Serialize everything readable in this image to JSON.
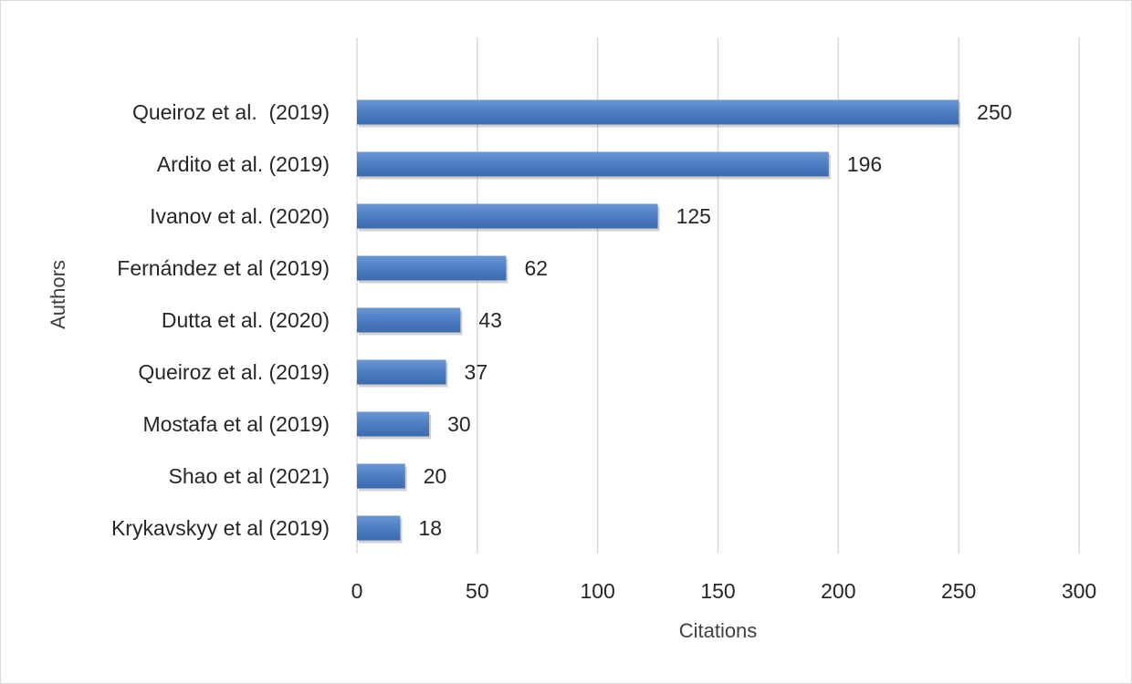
{
  "chart_data": {
    "type": "bar",
    "orientation": "horizontal",
    "title": "",
    "xlabel": "Citations",
    "ylabel": "Authors",
    "xlim": [
      0,
      300
    ],
    "xticks": [
      0,
      50,
      100,
      150,
      200,
      250,
      300
    ],
    "grid": "vertical",
    "legend": "none",
    "categories": [
      "Queiroz et al.  (2019)",
      "Ardito et al. (2019)",
      "Ivanov et al. (2020)",
      "Fernández et al (2019)",
      "Dutta et al. (2020)",
      "Queiroz et al. (2019)",
      "Mostafa et al (2019)",
      "Shao et al (2021)",
      "Krykavskyy et al (2019)"
    ],
    "values": [
      250,
      196,
      125,
      62,
      43,
      37,
      30,
      20,
      18
    ],
    "data_labels": [
      "250",
      "196",
      "125",
      "62",
      "43",
      "37",
      "30",
      "20",
      "18"
    ],
    "colors": {
      "bar": "#4a7cc0",
      "bar_light": "#6a96d6",
      "bar_dark": "#3c6bae",
      "gridline": "#d9d9d9",
      "text": "#262626"
    }
  }
}
